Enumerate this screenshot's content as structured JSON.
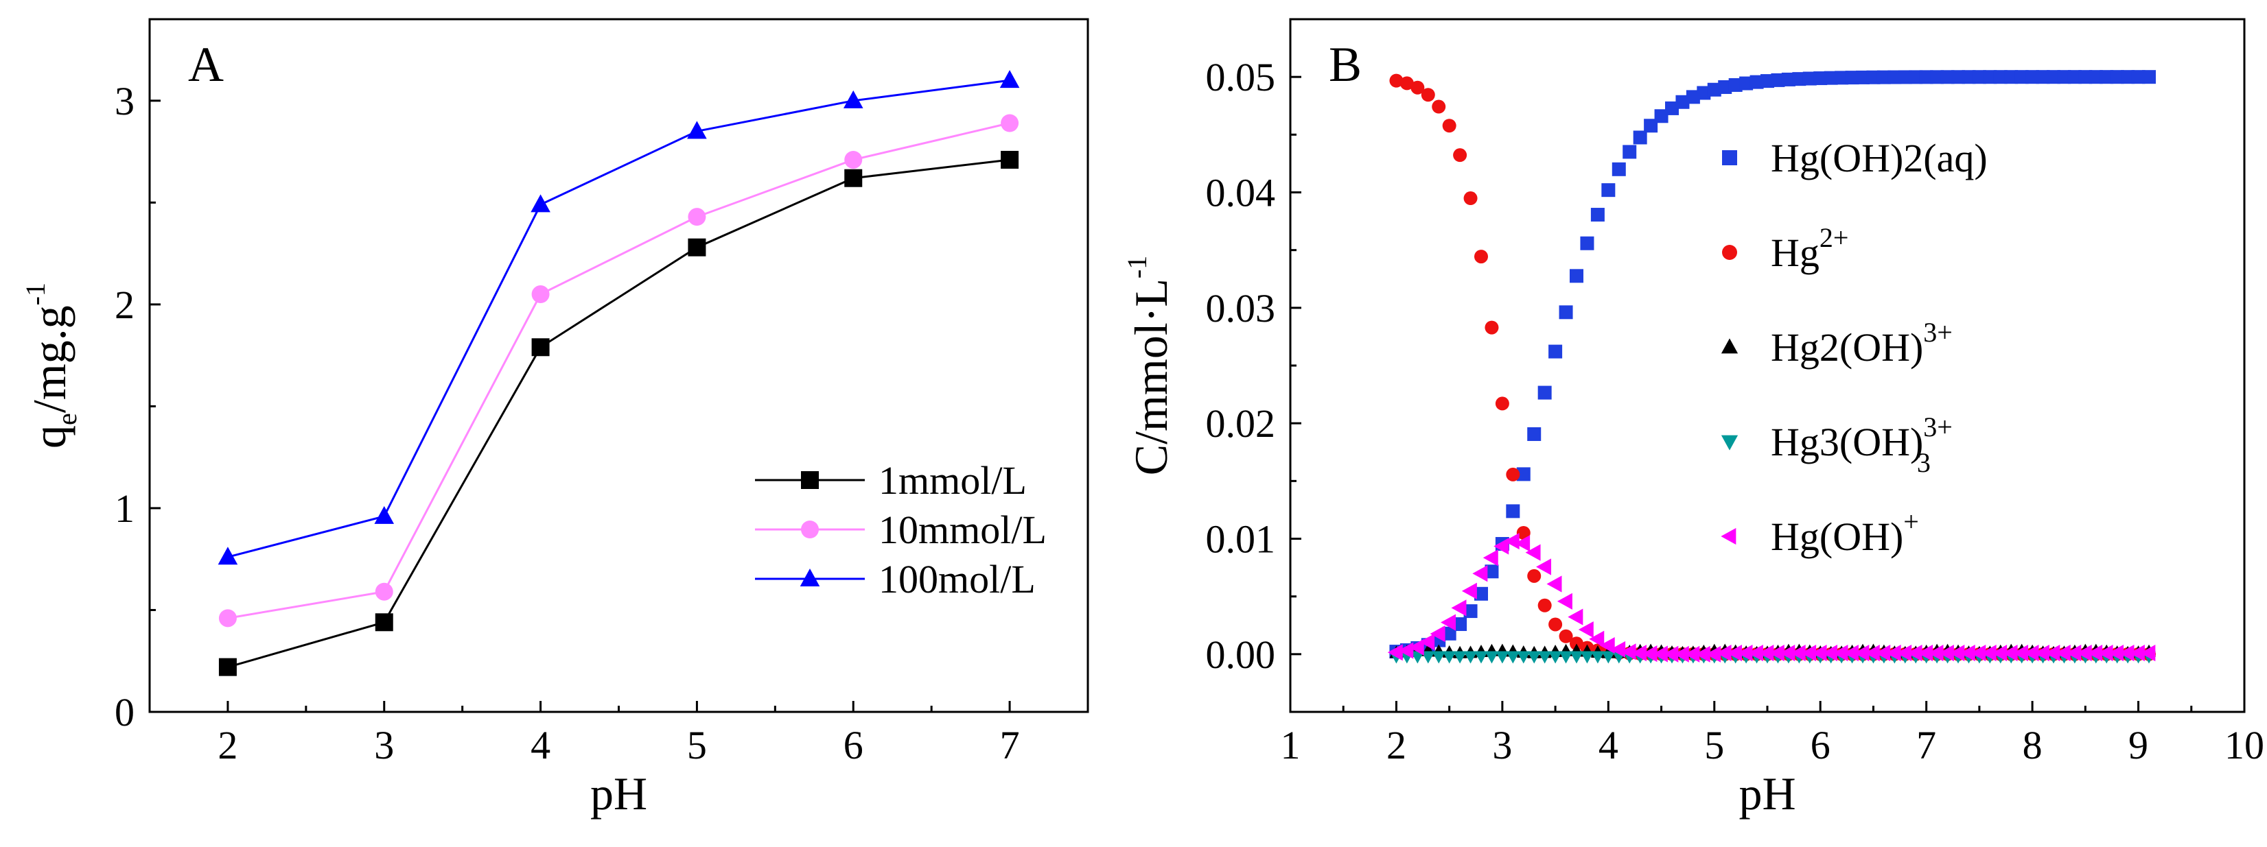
{
  "chart_data": [
    {
      "type": "line",
      "panel_label": "A",
      "xlabel": "pH",
      "ylabel": "q",
      "ylabel_sub": "e",
      "ylabel_rest": "/mg.g",
      "ylabel_sup": "-1",
      "xlim": [
        1.5,
        7.5
      ],
      "ylim": [
        0,
        3.4
      ],
      "xticks": [
        2,
        3,
        4,
        5,
        6,
        7
      ],
      "yticks": [
        0,
        1,
        2,
        3
      ],
      "grid": false,
      "legend_position": "center-right",
      "x": [
        2,
        3,
        4,
        5,
        6,
        7
      ],
      "series": [
        {
          "name": "1mmol/L",
          "marker": "square",
          "color": "#000000",
          "values": [
            0.22,
            0.44,
            1.79,
            2.28,
            2.62,
            2.71
          ]
        },
        {
          "name": "10mmol/L",
          "marker": "circle",
          "color": "#ff88ff",
          "values": [
            0.46,
            0.59,
            2.05,
            2.43,
            2.71,
            2.89
          ]
        },
        {
          "name": "100mol/L",
          "marker": "triangle",
          "color": "#0000ff",
          "values": [
            0.76,
            0.96,
            2.49,
            2.85,
            3.0,
            3.1
          ]
        }
      ]
    },
    {
      "type": "scatter",
      "panel_label": "B",
      "xlabel": "pH",
      "ylabel": "C/mmol·L",
      "ylabel_sup": "-1",
      "xlim": [
        1,
        10
      ],
      "ylim": [
        -0.005,
        0.055
      ],
      "xticks": [
        1,
        2,
        3,
        4,
        5,
        6,
        7,
        8,
        9,
        10
      ],
      "yticks": [
        0.0,
        0.01,
        0.02,
        0.03,
        0.04,
        0.05
      ],
      "ytick_labels": [
        "0.00",
        "0.01",
        "0.02",
        "0.03",
        "0.04",
        "0.05"
      ],
      "grid": false,
      "legend_position": "right",
      "x_range": [
        2.0,
        9.1
      ],
      "x_step": 0.1,
      "model": {
        "total": 0.05,
        "pK1": 2.95,
        "pK2": 3.35,
        "hgoh_peak": 0.0098,
        "hgoh_center": 3.12,
        "hgoh_width": 0.55
      },
      "series": [
        {
          "name": "Hg(OH)2(aq)",
          "label_main": "Hg(OH)2(aq)",
          "label_sup": "",
          "label_sub": "",
          "marker": "square",
          "color": "#1f3fe0"
        },
        {
          "name": "Hg2+",
          "label_main": "Hg",
          "label_sup": "2+",
          "label_sub": "",
          "marker": "circle",
          "color": "#ee1111"
        },
        {
          "name": "Hg2(OH)3+",
          "label_main": "Hg2(OH)",
          "label_sup": "3+",
          "label_sub": "",
          "marker": "triangle",
          "color": "#000000"
        },
        {
          "name": "Hg3(OH)33+",
          "label_main": "Hg3(OH)",
          "label_sup": "3+",
          "label_sub": "3",
          "marker": "triangle-down",
          "color": "#009999"
        },
        {
          "name": "Hg(OH)+",
          "label_main": "Hg(OH)",
          "label_sup": "+",
          "label_sub": "",
          "marker": "triangle-left",
          "color": "#ff00ff"
        }
      ]
    }
  ]
}
